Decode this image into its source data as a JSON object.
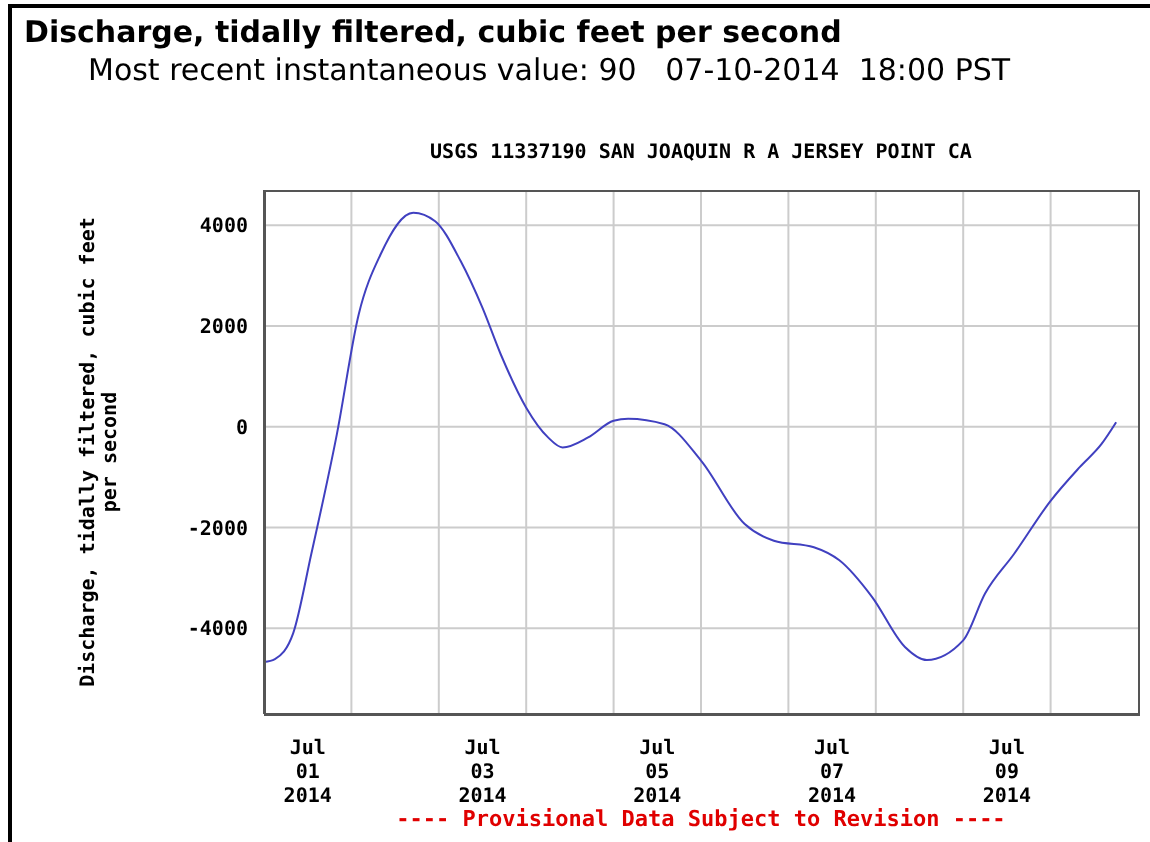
{
  "chart_data": {
    "type": "line",
    "title": "Discharge, tidally filtered, cubic feet per second",
    "subtitle": "Most recent instantaneous value: 90   07-10-2014  18:00 PST",
    "annotations": [
      "USGS 11337190 SAN JOAQUIN R A JERSEY POINT CA",
      "---- Provisional Data Subject to Revision ----"
    ],
    "ylabel": "Discharge, tidally filtered, cubic feet per second",
    "x": [
      "2014-07-01T00:00",
      "2014-07-01T03:00",
      "2014-07-01T08:00",
      "2014-07-01T13:00",
      "2014-07-01T20:00",
      "2014-07-02T02:00",
      "2014-07-02T08:00",
      "2014-07-02T17:00",
      "2014-07-02T23:00",
      "2014-07-03T06:00",
      "2014-07-03T12:00",
      "2014-07-03T17:00",
      "2014-07-04T00:00",
      "2014-07-04T06:00",
      "2014-07-04T10:00",
      "2014-07-04T17:00",
      "2014-07-05T00:00",
      "2014-07-05T04:00",
      "2014-07-05T14:00",
      "2014-07-06T00:00",
      "2014-07-06T12:00",
      "2014-07-06T20:00",
      "2014-07-07T07:00",
      "2014-07-07T14:00",
      "2014-07-07T23:00",
      "2014-07-08T08:00",
      "2014-07-08T14:00",
      "2014-07-09T00:00",
      "2014-07-09T06:00",
      "2014-07-09T14:00",
      "2014-07-10T00:00",
      "2014-07-10T08:00",
      "2014-07-10T14:00",
      "2014-07-10T18:00"
    ],
    "series": [
      {
        "color": "#4040c0",
        "values": [
          -4670,
          -4610,
          -4100,
          -2520,
          -150,
          2230,
          3420,
          4250,
          4080,
          3290,
          2360,
          1440,
          380,
          -210,
          -410,
          -210,
          120,
          160,
          50,
          -670,
          -1930,
          -2260,
          -2390,
          -2650,
          -3380,
          -4370,
          -4630,
          -4240,
          -3310,
          -2520,
          -1470,
          -800,
          -340,
          90
        ]
      }
    ],
    "xlim": [
      "2014-07-01T00:00",
      "2014-07-11T00:00"
    ],
    "xticks": [
      {
        "value": "2014-07-01T12:00",
        "label": "Jul\n01\n2014"
      },
      {
        "value": "2014-07-02T00:00",
        "label": null
      },
      {
        "value": "2014-07-03T00:00",
        "label": null
      },
      {
        "value": "2014-07-03T12:00",
        "label": "Jul\n03\n2014"
      },
      {
        "value": "2014-07-04T00:00",
        "label": null
      },
      {
        "value": "2014-07-05T00:00",
        "label": null
      },
      {
        "value": "2014-07-05T12:00",
        "label": "Jul\n05\n2014"
      },
      {
        "value": "2014-07-06T00:00",
        "label": null
      },
      {
        "value": "2014-07-07T00:00",
        "label": null
      },
      {
        "value": "2014-07-07T12:00",
        "label": "Jul\n07\n2014"
      },
      {
        "value": "2014-07-08T00:00",
        "label": null
      },
      {
        "value": "2014-07-09T00:00",
        "label": null
      },
      {
        "value": "2014-07-09T12:00",
        "label": "Jul\n09\n2014"
      },
      {
        "value": "2014-07-10T00:00",
        "label": null
      }
    ],
    "ylim": [
      -5700,
      4700
    ],
    "yticks": [
      -4000,
      -2000,
      0,
      2000,
      4000
    ],
    "grid": true,
    "legend": false,
    "marker": "none",
    "line_style": "solid"
  }
}
